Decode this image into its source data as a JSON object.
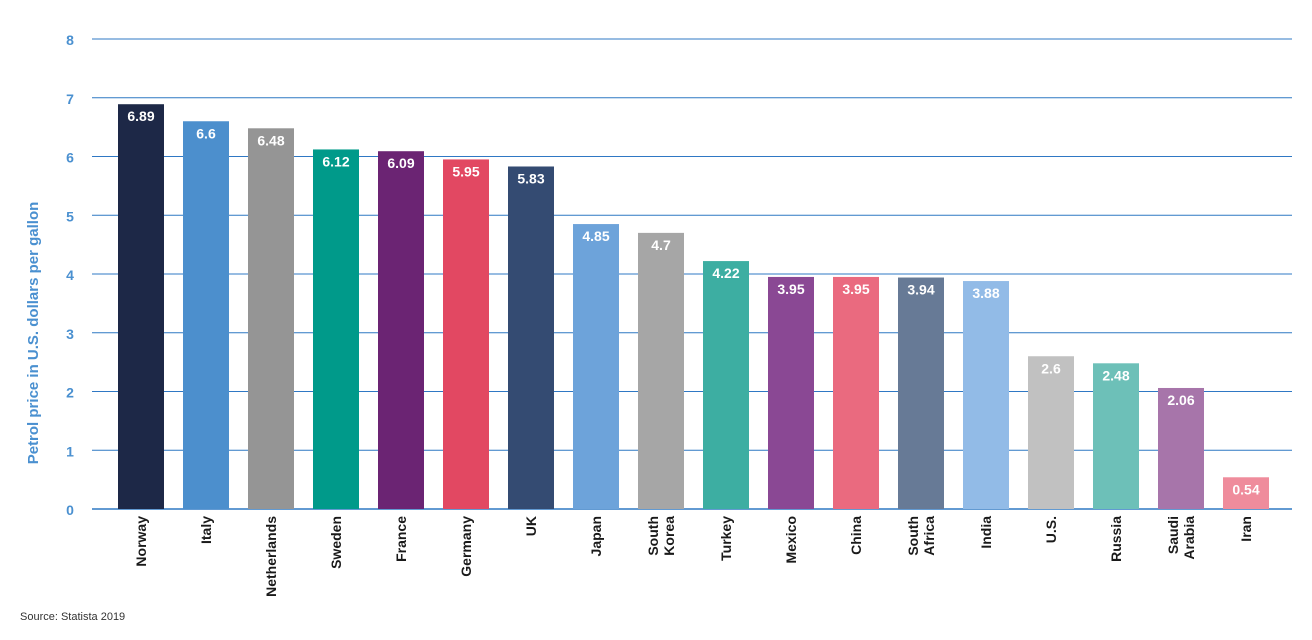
{
  "chart_data": {
    "type": "bar",
    "title": "",
    "ylabel": "Petrol price in U.S. dollars per gallon",
    "xlabel": "",
    "ylim": [
      0,
      8
    ],
    "yticks": [
      "0",
      "1",
      "2",
      "3",
      "4",
      "5",
      "6",
      "7",
      "8"
    ],
    "grid": true,
    "categories": [
      [
        "Norway"
      ],
      [
        "Italy"
      ],
      [
        "Netherlands"
      ],
      [
        "Sweden"
      ],
      [
        "France"
      ],
      [
        "Germany"
      ],
      [
        "UK"
      ],
      [
        "Japan"
      ],
      [
        "South",
        "Korea"
      ],
      [
        "Turkey"
      ],
      [
        "Mexico"
      ],
      [
        "China"
      ],
      [
        "South",
        "Africa"
      ],
      [
        "India"
      ],
      [
        "U.S."
      ],
      [
        "Russia"
      ],
      [
        "Saudi",
        "Arabia"
      ],
      [
        "Iran"
      ]
    ],
    "values": [
      6.89,
      6.6,
      6.48,
      6.12,
      6.09,
      5.95,
      5.83,
      4.85,
      4.7,
      4.22,
      3.95,
      3.95,
      3.94,
      3.88,
      2.6,
      2.48,
      2.06,
      0.54
    ],
    "value_labels": [
      "6.89",
      "6.6",
      "6.48",
      "6.12",
      "6.09",
      "5.95",
      "5.83",
      "4.85",
      "4.7",
      "4.22",
      "3.95",
      "3.95",
      "3.94",
      "3.88",
      "2.6",
      "2.48",
      "2.06",
      "0.54"
    ],
    "colors": [
      "#1d2847",
      "#4c8fcd",
      "#959595",
      "#009a8a",
      "#6b2473",
      "#e24862",
      "#344b72",
      "#6da3da",
      "#a6a6a6",
      "#3daea2",
      "#8a4894",
      "#ea6a7f",
      "#677a96",
      "#92bbe7",
      "#c1c1c1",
      "#6dc0b8",
      "#a775aa",
      "#ef8c9c"
    ],
    "gridColor": "#2f78c4",
    "axisLabelColor": "#4a90d0"
  },
  "source": "Source: Statista 2019"
}
